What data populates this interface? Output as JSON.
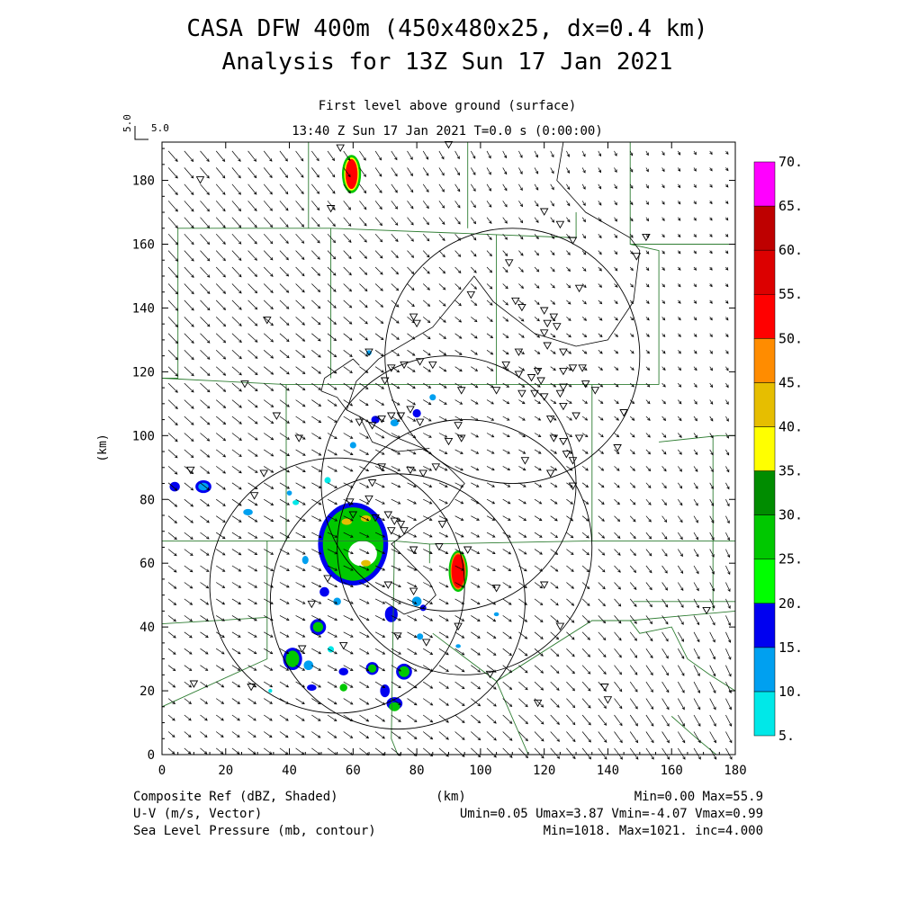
{
  "chart_data": {
    "type": "heatmap",
    "title_line1": "CASA DFW 400m (450x480x25, dx=0.4 km)",
    "title_line2": "Analysis for 13Z Sun 17 Jan 2021",
    "subtitle": "First level above ground (surface)",
    "time_label": "13:40 Z Sun 17 Jan 2021    T=0.0 s (0:00:00)",
    "vector_ref_label": "5.0",
    "vector_ref_side": "5.0",
    "xlabel": "(km)",
    "ylabel": "(km)",
    "xlim": [
      0,
      180
    ],
    "ylim": [
      0,
      192
    ],
    "xticks": [
      "0",
      "20",
      "40",
      "60",
      "80",
      "100",
      "120",
      "140",
      "160",
      "180"
    ],
    "yticks": [
      "0",
      "20",
      "40",
      "60",
      "80",
      "100",
      "120",
      "140",
      "160",
      "180"
    ],
    "colorbar": {
      "levels": [
        "5.",
        "10.",
        "15.",
        "20.",
        "25.",
        "30.",
        "35.",
        "40.",
        "45.",
        "50.",
        "55.",
        "60.",
        "65.",
        "70."
      ],
      "colors": [
        "#00e8e8",
        "#00a0f0",
        "#0000f0",
        "#00ff00",
        "#00c800",
        "#008c00",
        "#ffff00",
        "#e6be00",
        "#ff8c00",
        "#ff0000",
        "#dc0000",
        "#be0000",
        "#ff00ff"
      ]
    },
    "footer": {
      "left1": "Composite Ref (dBZ, Shaded)",
      "left2": "U-V (m/s, Vector)",
      "left3": "Sea Level Pressure (mb, contour)",
      "center1": "(km)",
      "right1": "Min=0.00 Max=55.9",
      "right2": "Umin=0.05 Umax=3.87 Vmin=-4.07 Vmax=0.99",
      "right3": "Min=1018. Max=1021. inc=4.000"
    },
    "radar_rings": [
      {
        "center": [
          110,
          125
        ],
        "radius": 40
      },
      {
        "center": [
          90,
          85
        ],
        "radius": 40
      },
      {
        "center": [
          95,
          65
        ],
        "radius": 40
      },
      {
        "center": [
          55,
          53
        ],
        "radius": 40
      },
      {
        "center": [
          74,
          48
        ],
        "radius": 40
      }
    ],
    "wind_u_range": [
      0.05,
      3.87
    ],
    "wind_v_range": [
      -4.07,
      0.99
    ],
    "reflectivity_range": [
      0.0,
      55.9
    ],
    "pressure_range": [
      1018,
      1021
    ]
  }
}
